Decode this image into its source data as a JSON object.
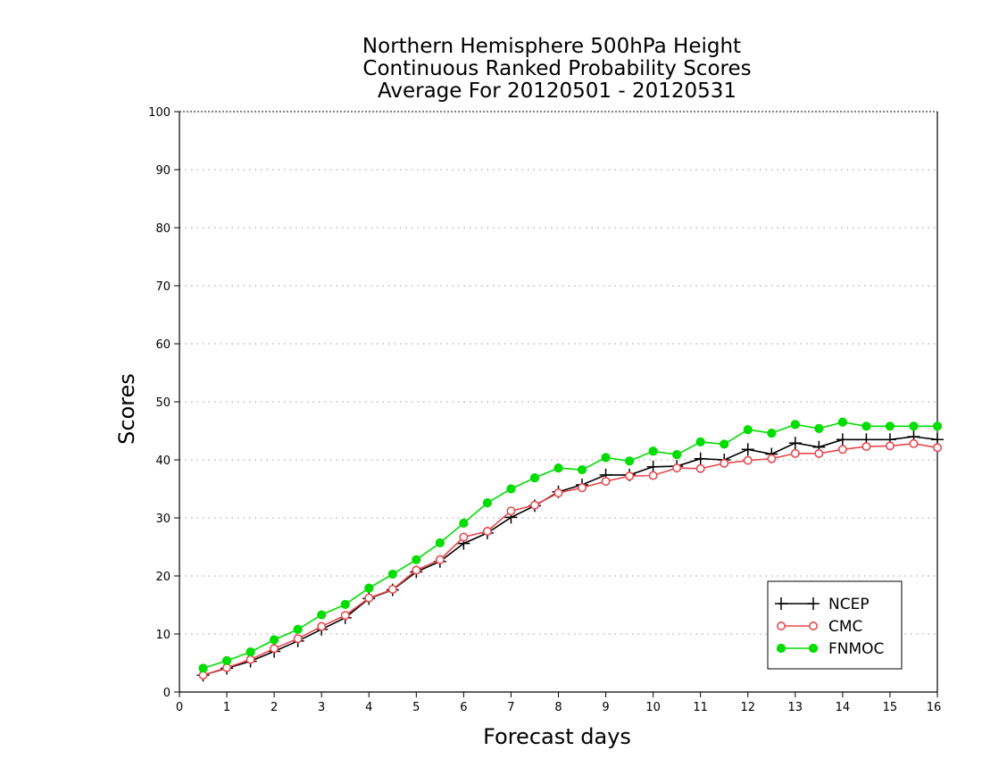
{
  "chart_data": {
    "type": "line",
    "title_lines": [
      "Northern Hemisphere 500hPa Height",
      "Continuous Ranked Probability Scores",
      "Average For 20120501 - 20120531"
    ],
    "xlabel": "Forecast days",
    "ylabel": "Scores",
    "xlim": [
      0,
      16
    ],
    "ylim": [
      0,
      100
    ],
    "x_ticks": [
      "0",
      "1",
      "2",
      "3",
      "4",
      "5",
      "6",
      "7",
      "8",
      "9",
      "10",
      "11",
      "12",
      "13",
      "14",
      "15",
      "16"
    ],
    "y_ticks": [
      "0",
      "10",
      "20",
      "30",
      "40",
      "50",
      "60",
      "70",
      "80",
      "90",
      "100"
    ],
    "grid": true,
    "legend_position": "bottom-right",
    "x": [
      0.5,
      1.0,
      1.5,
      2.0,
      2.5,
      3.0,
      3.5,
      4.0,
      4.5,
      5.0,
      5.5,
      6.0,
      6.5,
      7.0,
      7.5,
      8.0,
      8.5,
      9.0,
      9.5,
      10.0,
      10.5,
      11.0,
      11.5,
      12.0,
      12.5,
      13.0,
      13.5,
      14.0,
      14.5,
      15.0,
      15.5,
      16.0
    ],
    "series": [
      {
        "name": "NCEP",
        "color": "#000000",
        "marker": "plus",
        "values": [
          2.9,
          4.1,
          5.3,
          7.0,
          8.8,
          10.8,
          12.8,
          16.1,
          17.6,
          20.7,
          22.5,
          25.6,
          27.4,
          30.1,
          32.1,
          34.5,
          35.7,
          37.4,
          37.4,
          38.8,
          38.9,
          40.2,
          40.0,
          41.8,
          41.0,
          42.9,
          42.2,
          43.5,
          43.5,
          43.5,
          44.0,
          43.5
        ]
      },
      {
        "name": "CMC",
        "color": "#e8494f",
        "marker": "open-circle",
        "values": [
          2.9,
          4.2,
          5.6,
          7.5,
          9.2,
          11.3,
          13.2,
          16.2,
          17.7,
          21.0,
          22.8,
          26.7,
          27.7,
          31.2,
          32.2,
          34.3,
          35.2,
          36.3,
          37.2,
          37.3,
          38.6,
          38.5,
          39.4,
          39.9,
          40.2,
          41.1,
          41.1,
          41.8,
          42.3,
          42.4,
          42.8,
          42.1
        ]
      },
      {
        "name": "FNMOC",
        "color": "#00dd00",
        "marker": "filled-circle",
        "values": [
          4.1,
          5.4,
          6.9,
          9.0,
          10.8,
          13.3,
          15.1,
          17.9,
          20.3,
          22.8,
          25.7,
          29.1,
          32.6,
          35.0,
          36.9,
          38.6,
          38.3,
          40.4,
          39.8,
          41.5,
          40.9,
          43.1,
          42.7,
          45.2,
          44.6,
          46.1,
          45.4,
          46.5,
          45.8,
          45.8,
          45.8,
          45.8
        ]
      }
    ]
  }
}
